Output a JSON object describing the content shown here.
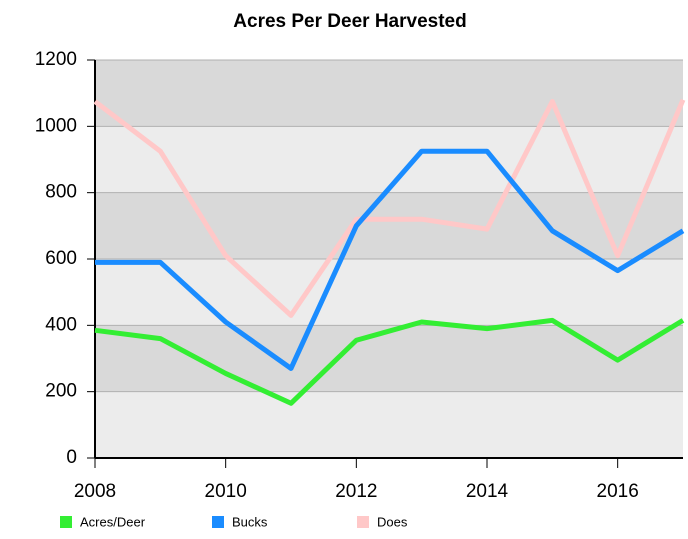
{
  "chart_data": {
    "type": "line",
    "title": "Acres Per Deer Harvested",
    "x": [
      2008,
      2009,
      2010,
      2011,
      2012,
      2013,
      2014,
      2015,
      2016,
      2017
    ],
    "series": [
      {
        "name": "Acres/Deer",
        "color": "#33ee33",
        "values": [
          385,
          360,
          255,
          165,
          355,
          410,
          390,
          415,
          295,
          415
        ]
      },
      {
        "name": "Bucks",
        "color": "#1a8cff",
        "values": [
          590,
          590,
          410,
          270,
          700,
          925,
          925,
          685,
          565,
          685
        ]
      },
      {
        "name": "Does",
        "color": "#ffc8c8",
        "values": [
          1075,
          925,
          610,
          430,
          720,
          720,
          690,
          1075,
          610,
          1080
        ]
      }
    ],
    "xlim": [
      2008,
      2017
    ],
    "xticks": [
      2008,
      2010,
      2012,
      2014,
      2016
    ],
    "ylim": [
      0,
      1200
    ],
    "yticks": [
      0,
      200,
      400,
      600,
      800,
      1000,
      1200
    ],
    "grid": true,
    "legend": "bottom"
  }
}
